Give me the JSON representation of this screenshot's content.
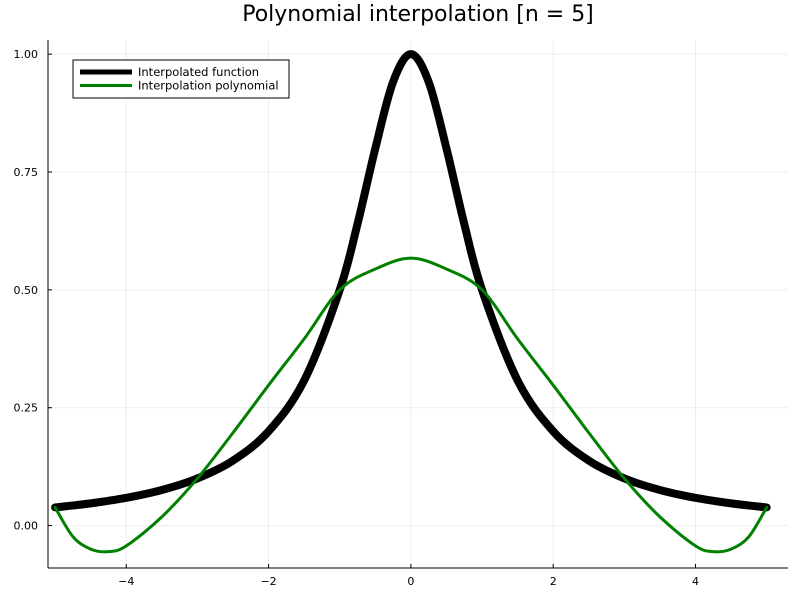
{
  "chart_data": {
    "type": "line",
    "title": "Polynomial interpolation [n = 5]",
    "xlabel": "",
    "ylabel": "",
    "xlim": [
      -5.1,
      5.3
    ],
    "ylim": [
      -0.09,
      1.03
    ],
    "xticks": [
      -4,
      -2,
      0,
      2,
      4
    ],
    "xtick_labels": [
      "−4",
      "−2",
      "0",
      "2",
      "4"
    ],
    "yticks": [
      0.0,
      0.25,
      0.5,
      0.75,
      1.0
    ],
    "ytick_labels": [
      "0.00",
      "0.25",
      "0.50",
      "0.75",
      "1.00"
    ],
    "grid": true,
    "legend_position": "top-left",
    "nodes": [
      -5,
      -3,
      -1,
      1,
      3,
      5
    ],
    "series": [
      {
        "name": "Interpolated function",
        "color": "#000000",
        "x": [
          -5,
          -4.5,
          -4,
          -3.5,
          -3,
          -2.5,
          -2,
          -1.5,
          -1,
          -0.75,
          -0.5,
          -0.25,
          0,
          0.25,
          0.5,
          0.75,
          1,
          1.5,
          2,
          2.5,
          3,
          3.5,
          4,
          4.5,
          5
        ],
        "y": [
          0.0385,
          0.0471,
          0.0588,
          0.0755,
          0.1,
          0.1379,
          0.2,
          0.3077,
          0.5,
          0.64,
          0.8,
          0.9412,
          1.0,
          0.9412,
          0.8,
          0.64,
          0.5,
          0.3077,
          0.2,
          0.1379,
          0.1,
          0.0755,
          0.0588,
          0.0471,
          0.0385
        ]
      },
      {
        "name": "Interpolation polynomial",
        "color": "#008000",
        "x": [
          -5,
          -4.75,
          -4.5,
          -4.25,
          -4,
          -3.5,
          -3,
          -2.5,
          -2,
          -1.5,
          -1,
          -0.5,
          0,
          0.5,
          1,
          1.5,
          2,
          2.5,
          3,
          3.5,
          4,
          4.25,
          4.5,
          4.75,
          5
        ],
        "y": [
          0.0385,
          -0.0234,
          -0.0499,
          -0.0553,
          -0.0431,
          0.0185,
          0.1,
          0.1969,
          0.2978,
          0.3961,
          0.5,
          0.5442,
          0.5673,
          0.5442,
          0.5,
          0.3961,
          0.2978,
          0.1969,
          0.1,
          0.0185,
          -0.0431,
          -0.0553,
          -0.0499,
          -0.0234,
          0.0385
        ]
      }
    ]
  }
}
